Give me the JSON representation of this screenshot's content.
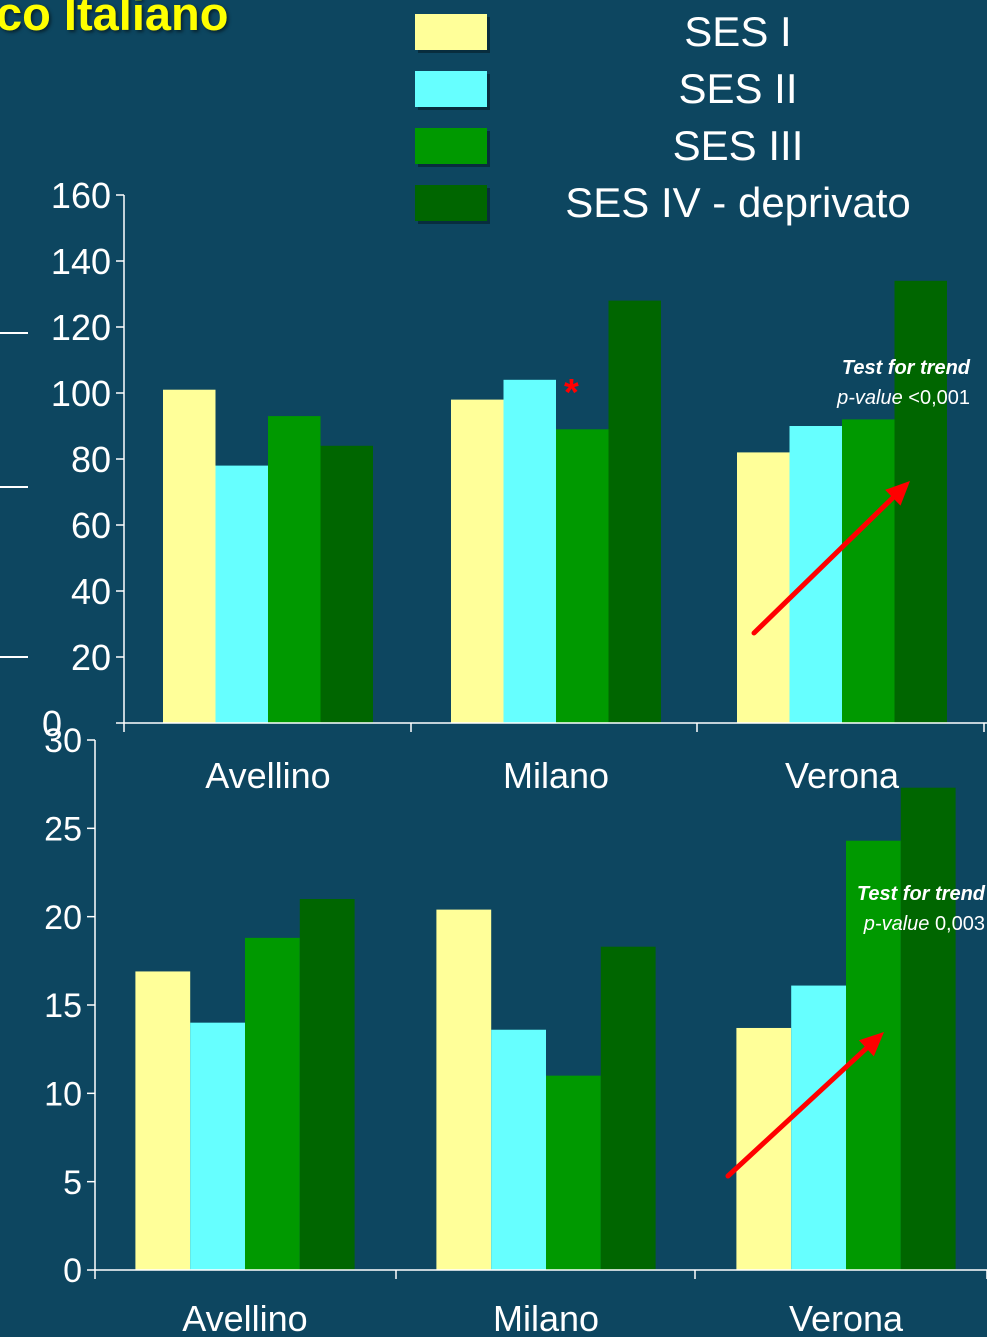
{
  "header": {
    "title_fragment": "co Italiano"
  },
  "legend": {
    "items": [
      {
        "label": "SES I",
        "color": "#ffff99"
      },
      {
        "label": "SES II",
        "color": "#66ffff"
      },
      {
        "label": "SES III",
        "color": "#009900"
      },
      {
        "label": "SES IV - deprivato",
        "color": "#006600"
      }
    ]
  },
  "colors": {
    "background": "#0d4660",
    "axis": "#ffffff",
    "arrow": "#ff0000",
    "star": "#ff0000",
    "title": "#ffff00"
  },
  "chart_data": [
    {
      "type": "bar",
      "categories": [
        "Avellino",
        "Milano",
        "Verona"
      ],
      "series": [
        {
          "name": "SES I",
          "values": [
            101,
            98,
            82
          ]
        },
        {
          "name": "SES II",
          "values": [
            78,
            104,
            90
          ]
        },
        {
          "name": "SES III",
          "values": [
            93,
            89,
            92
          ]
        },
        {
          "name": "SES IV - deprivato",
          "values": [
            84,
            128,
            134
          ]
        }
      ],
      "ylim": [
        0,
        160
      ],
      "yticks": [
        0,
        20,
        40,
        60,
        80,
        100,
        120,
        140,
        160
      ],
      "grid": false,
      "annotations": [
        {
          "text": "*",
          "near": "Milano SES III"
        }
      ],
      "trend": {
        "label_bold": "Test for trend",
        "label_pvalue": "p-value",
        "label_value": "<0,001"
      }
    },
    {
      "type": "bar",
      "categories": [
        "Avellino",
        "Milano",
        "Verona"
      ],
      "series": [
        {
          "name": "SES I",
          "values": [
            16.9,
            20.4,
            13.7
          ]
        },
        {
          "name": "SES II",
          "values": [
            14.0,
            13.6,
            16.1
          ]
        },
        {
          "name": "SES III",
          "values": [
            18.8,
            11.0,
            24.3
          ]
        },
        {
          "name": "SES IV - deprivato",
          "values": [
            21.0,
            18.3,
            27.3
          ]
        }
      ],
      "ylim": [
        0,
        30
      ],
      "yticks": [
        0,
        5,
        10,
        15,
        20,
        25,
        30
      ],
      "grid": false,
      "trend": {
        "label_bold": "Test for trend",
        "label_pvalue": "p-value",
        "label_value": "0,003"
      }
    }
  ]
}
